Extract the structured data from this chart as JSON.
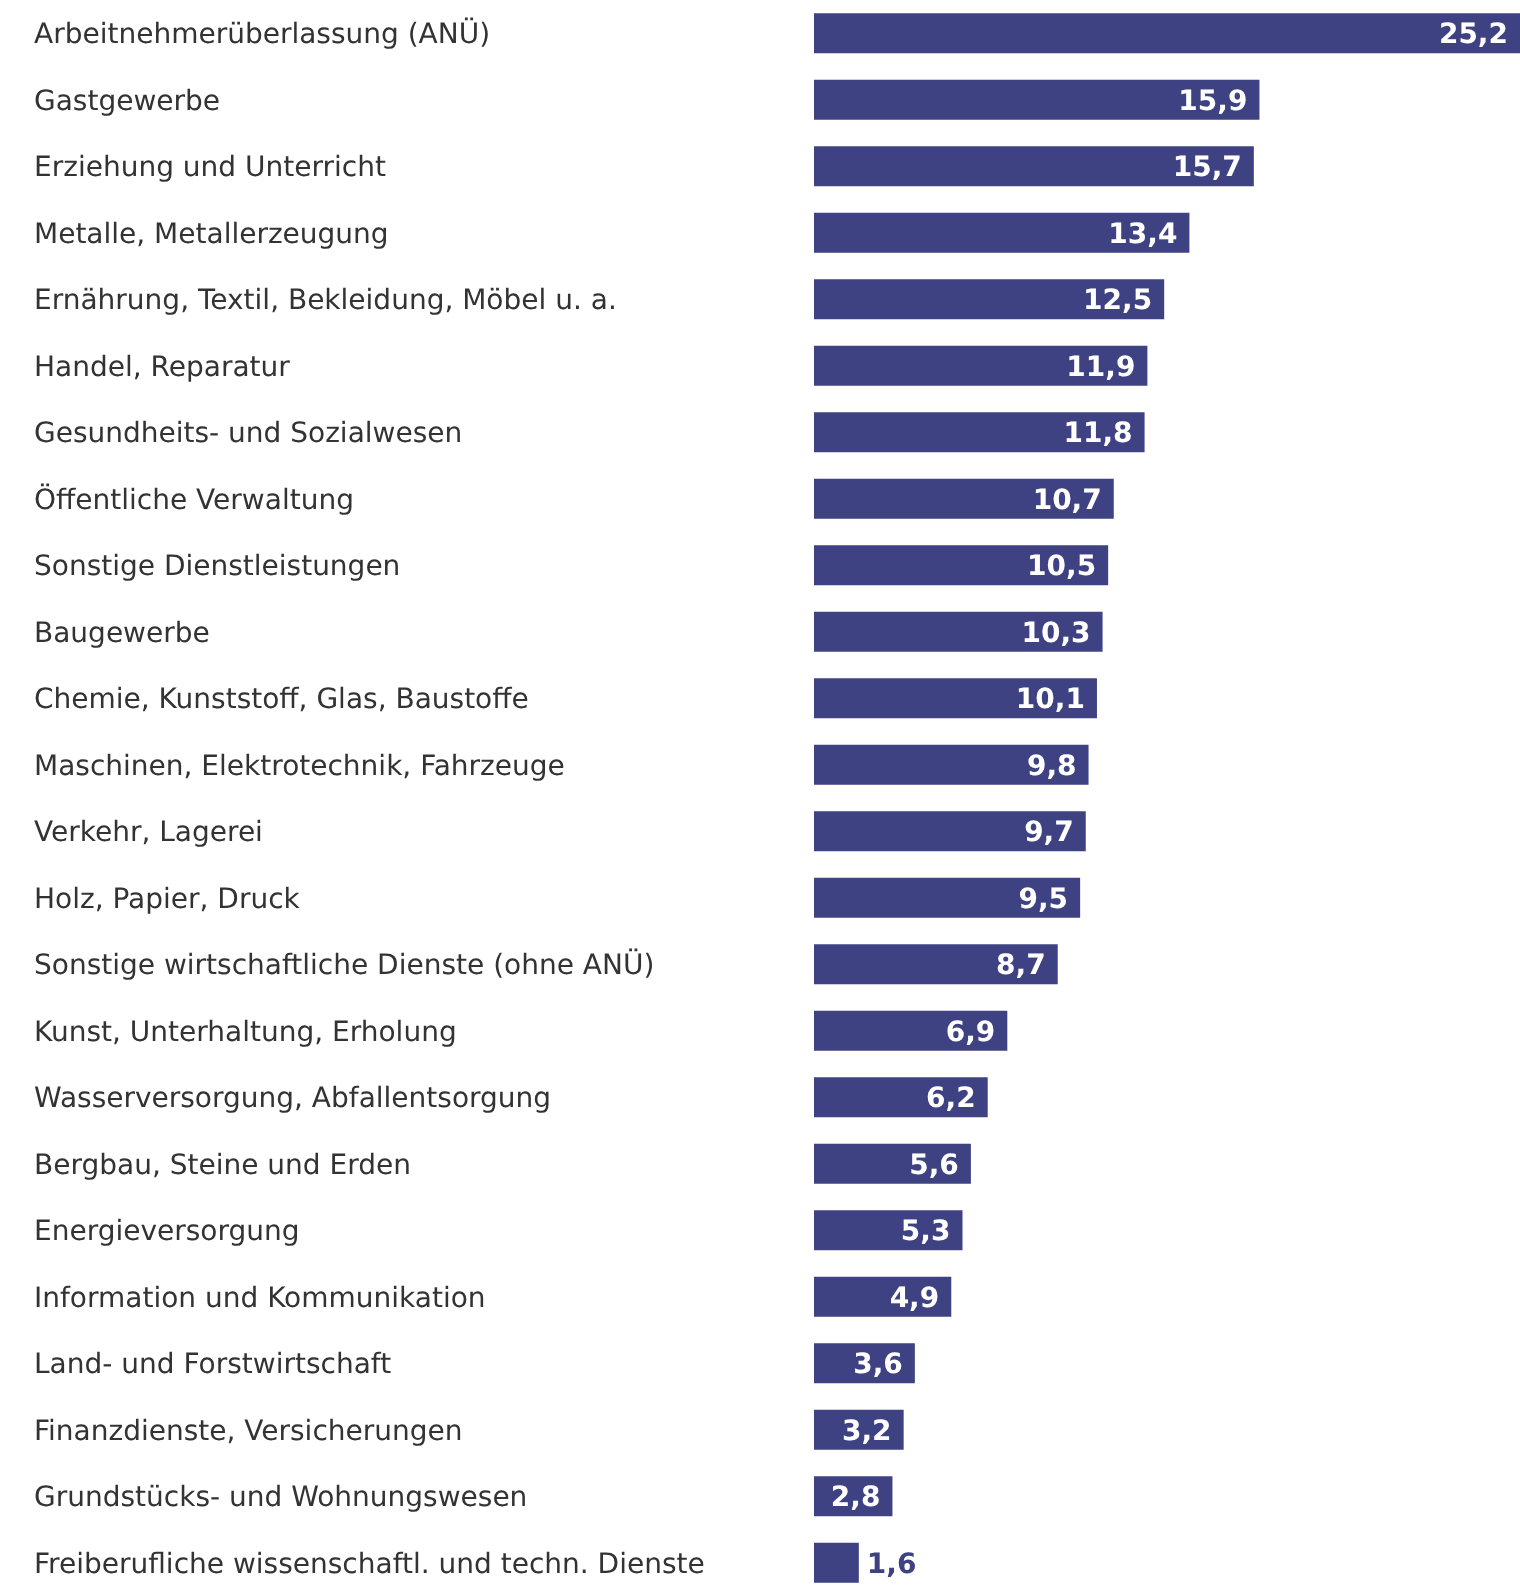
{
  "chart_data": {
    "type": "bar",
    "orientation": "horizontal",
    "categories": [
      "Arbeitnehmerüberlassung (ANÜ)",
      "Gastgewerbe",
      "Erziehung und Unterricht",
      "Metalle, Metallerzeugung",
      "Ernährung, Textil, Bekleidung, Möbel u. a.",
      "Handel, Reparatur",
      "Gesundheits- und Sozialwesen",
      "Öffentliche Verwaltung",
      "Sonstige Dienstleistungen",
      "Baugewerbe",
      "Chemie, Kunststoff, Glas, Baustoffe",
      "Maschinen, Elektrotechnik, Fahrzeuge",
      "Verkehr, Lagerei",
      "Holz, Papier, Druck",
      "Sonstige wirtschaftliche Dienste (ohne ANÜ)",
      "Kunst, Unterhaltung, Erholung",
      "Wasserversorgung, Abfallentsorgung",
      "Bergbau, Steine und Erden",
      "Energieversorgung",
      "Information und Kommunikation",
      "Land- und Forstwirtschaft",
      "Finanzdienste, Versicherungen",
      "Grundstücks- und Wohnungswesen",
      "Freiberufliche wissenschaftl. und techn. Dienste"
    ],
    "values": [
      25.2,
      15.9,
      15.7,
      13.4,
      12.5,
      11.9,
      11.8,
      10.7,
      10.5,
      10.3,
      10.1,
      9.8,
      9.7,
      9.5,
      8.7,
      6.9,
      6.2,
      5.6,
      5.3,
      4.9,
      3.6,
      3.2,
      2.8,
      1.6
    ],
    "value_labels": [
      "25,2",
      "15,9",
      "15,7",
      "13,4",
      "12,5",
      "11,9",
      "11,8",
      "10,7",
      "10,5",
      "10,3",
      "10,1",
      "9,8",
      "9,7",
      "9,5",
      "8,7",
      "6,9",
      "6,2",
      "5,6",
      "5,3",
      "4,9",
      "3,6",
      "3,2",
      "2,8",
      "1,6"
    ],
    "color": "#3f4282"
  }
}
